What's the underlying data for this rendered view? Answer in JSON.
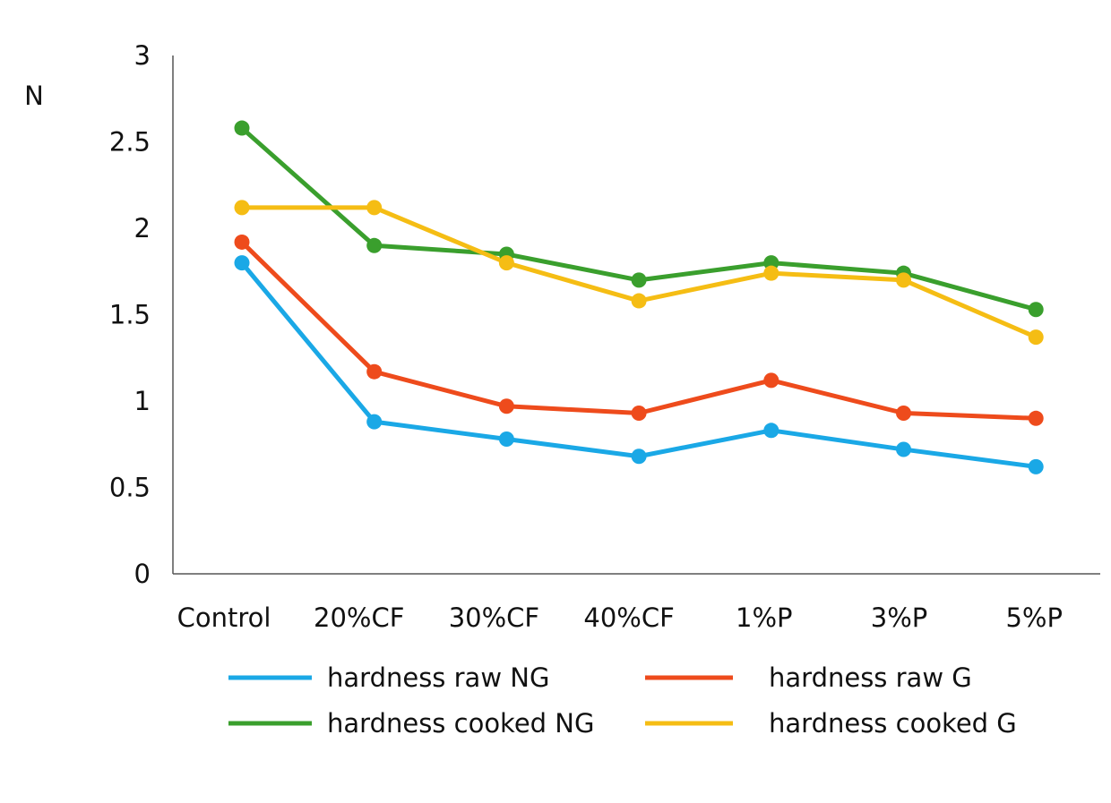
{
  "chart_data": {
    "type": "line",
    "ylabel": "N",
    "categories": [
      "Control",
      "20%CF",
      "30%CF",
      "40%CF",
      "1%P",
      "3%P",
      "5%P"
    ],
    "ylim": [
      0,
      3
    ],
    "yticks": [
      "0",
      "0.5",
      "1",
      "1.5",
      "2",
      "2.5",
      "3"
    ],
    "grid": false,
    "legend_position": "bottom",
    "series": [
      {
        "name": "hardness raw NG",
        "color": "#1aa8e6",
        "values": [
          1.8,
          0.88,
          0.78,
          0.68,
          0.83,
          0.72,
          0.62
        ]
      },
      {
        "name": "hardness raw G",
        "color": "#ee4b1c",
        "values": [
          1.92,
          1.17,
          0.97,
          0.93,
          1.12,
          0.93,
          0.9
        ]
      },
      {
        "name": "hardness cooked NG",
        "color": "#3a9f2d",
        "values": [
          2.58,
          1.9,
          1.85,
          1.7,
          1.8,
          1.74,
          1.53
        ]
      },
      {
        "name": "hardness cooked G",
        "color": "#f5bd14",
        "values": [
          2.12,
          2.12,
          1.8,
          1.58,
          1.74,
          1.7,
          1.37
        ]
      }
    ]
  }
}
